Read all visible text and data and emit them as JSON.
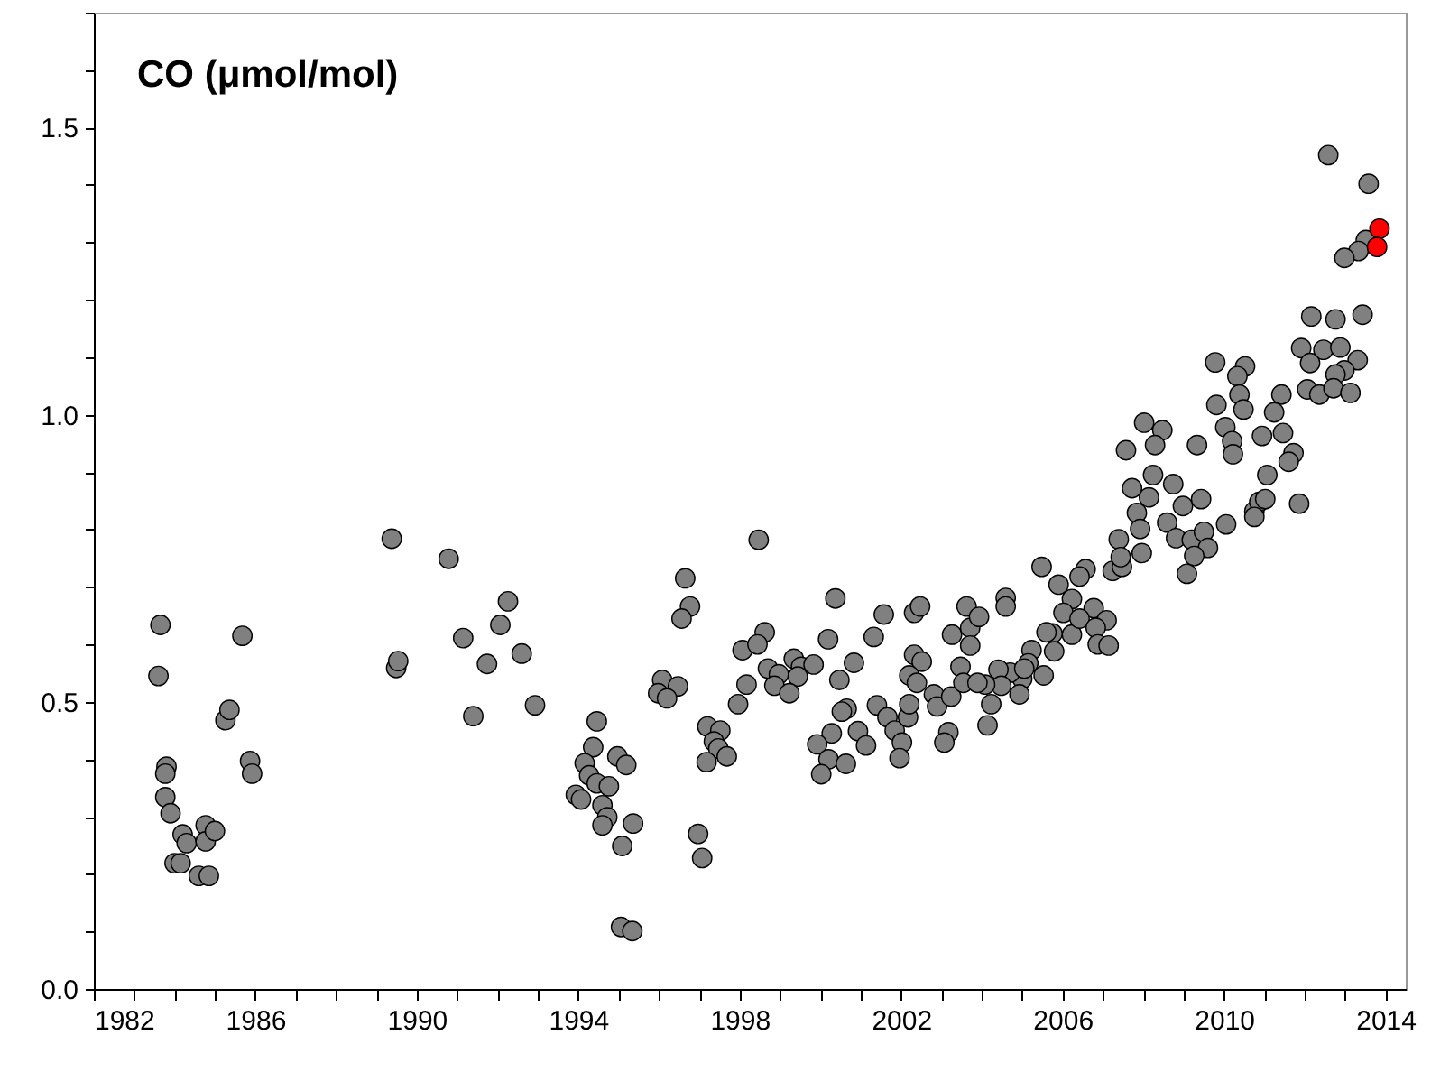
{
  "chart_data": {
    "type": "scatter",
    "title": "CO (μmol/mol)",
    "marker": "circle",
    "grid": false,
    "xlim": [
      1982,
      2014.5
    ],
    "ylim": [
      0,
      1.7
    ],
    "xticks": [
      1982,
      {
        "value": 1983,
        "label": null
      },
      {
        "value": 1984,
        "label": null
      },
      {
        "value": 1985,
        "label": null
      },
      1986,
      {
        "value": 1987,
        "label": null
      },
      {
        "value": 1988,
        "label": null
      },
      {
        "value": 1989,
        "label": null
      },
      1990,
      {
        "value": 1991,
        "label": null
      },
      {
        "value": 1992,
        "label": null
      },
      {
        "value": 1993,
        "label": null
      },
      1994,
      {
        "value": 1995,
        "label": null
      },
      {
        "value": 1996,
        "label": null
      },
      {
        "value": 1997,
        "label": null
      },
      1998,
      {
        "value": 1999,
        "label": null
      },
      {
        "value": 2000,
        "label": null
      },
      {
        "value": 2001,
        "label": null
      },
      2002,
      {
        "value": 2003,
        "label": null
      },
      {
        "value": 2004,
        "label": null
      },
      {
        "value": 2005,
        "label": null
      },
      2006,
      {
        "value": 2007,
        "label": null
      },
      {
        "value": 2008,
        "label": null
      },
      {
        "value": 2009,
        "label": null
      },
      2010,
      {
        "value": 2011,
        "label": null
      },
      {
        "value": 2012,
        "label": null
      },
      {
        "value": 2013,
        "label": null
      },
      2014
    ],
    "yticks": [
      {
        "value": 0,
        "label": "0.0"
      },
      {
        "value": 0.1,
        "label": null
      },
      {
        "value": 0.2,
        "label": null
      },
      {
        "value": 0.3,
        "label": null
      },
      {
        "value": 0.4,
        "label": null
      },
      0.5,
      {
        "value": 0.6,
        "label": null
      },
      {
        "value": 0.7,
        "label": null
      },
      {
        "value": 0.8,
        "label": null
      },
      {
        "value": 0.9,
        "label": null
      },
      {
        "value": 1,
        "label": "1.0"
      },
      {
        "value": 1.1,
        "label": null
      },
      {
        "value": 1.2,
        "label": null
      },
      {
        "value": 1.3,
        "label": null
      },
      {
        "value": 1.4,
        "label": null
      },
      1.5,
      {
        "value": 1.6,
        "label": null
      },
      {
        "value": 1.7,
        "label": null
      }
    ],
    "series": [
      {
        "color": "#808080",
        "x": [
          1983.65,
          1983.6,
          1983.8,
          1983.77,
          1983.77,
          1983.9,
          1984.2,
          1984.3,
          1984.0,
          1984.15,
          1984.6,
          1984.85,
          1984.77,
          1984.77,
          1985.0,
          1985.26,
          1985.36,
          1985.68,
          1985.87,
          1985.92,
          1989.38,
          1989.49,
          1989.54,
          1990.79,
          1991.15,
          1991.4,
          1991.74,
          1992.07,
          1992.26,
          1992.6,
          1992.93,
          1994.46,
          1994.37,
          1994.16,
          1994.27,
          1994.46,
          1994.76,
          1994.97,
          1995.19,
          1993.94,
          1994.07,
          1994.6,
          1994.72,
          1994.6,
          1995.36,
          1995.09,
          1995.06,
          1995.34,
          1996.65,
          1996.77,
          1996.56,
          1996.08,
          1996.47,
          1995.98,
          1996.2,
          1998.47,
          1998.62,
          1998.07,
          1998.44,
          1998.17,
          1997.96,
          1997.2,
          1997.52,
          1997.36,
          1997.47,
          1997.68,
          1997.18,
          1996.97,
          1997.07,
          1998.7,
          1998.97,
          1998.86,
          1999.34,
          1999.52,
          1999.83,
          1999.44,
          1999.23,
          2000.37,
          2000.19,
          2000.47,
          2000.83,
          2000.65,
          2000.53,
          2000.28,
          1999.92,
          2000.2,
          2000.63,
          2000.02,
          2000.93,
          2001.13,
          2001.4,
          2001.66,
          2001.32,
          2001.57,
          2001.84,
          2002.02,
          2001.96,
          2002.17,
          2002.2,
          2002.32,
          2002.47,
          2002.32,
          2002.51,
          2002.2,
          2002.39,
          2002.81,
          2002.89,
          2003.24,
          2003.26,
          2003.47,
          2003.54,
          2003.17,
          2003.07,
          2003.62,
          2003.71,
          2003.71,
          2005.48,
          2005.9,
          2006.57,
          2006.42,
          2007.24,
          2007.47,
          2007.96,
          2009.08,
          2004.59,
          2004.59,
          2003.93,
          2006.23,
          2006.02,
          2006.23,
          2006.77,
          2007.09,
          2006.42,
          2006.82,
          2006.87,
          2007.14,
          2005.75,
          2005.6,
          2005.79,
          2005.23,
          2005.15,
          2005.53,
          2005.0,
          2004.93,
          2004.7,
          2004.41,
          2004.48,
          2004.23,
          2004.14,
          2004.08,
          2003.89,
          2005.05,
          2012.58,
          2013.58,
          2013.51,
          2013.33,
          2012.98,
          2012.16,
          2012.76,
          2013.43,
          2011.91,
          2012.46,
          2012.88,
          2013.31,
          2012.13,
          2012.98,
          2012.76,
          2012.06,
          2012.36,
          2012.71,
          2013.13,
          2009.78,
          2010.52,
          2010.33,
          2011.42,
          2009.81,
          2010.38,
          2010.48,
          2011.24,
          2008.02,
          2008.47,
          2008.29,
          2007.57,
          2009.33,
          2010.03,
          2010.2,
          2010.22,
          2010.94,
          2011.46,
          2011.72,
          2011.6,
          2011.07,
          2011.86,
          2007.72,
          2008.24,
          2008.74,
          2008.14,
          2007.84,
          2008.98,
          2009.43,
          2008.59,
          2007.92,
          2007.39,
          2007.44,
          2008.81,
          2009.2,
          2009.5,
          2009.6,
          2010.05,
          2009.26,
          2010.75,
          2010.87,
          2011.02,
          2010.75
        ],
        "values": [
          0.634,
          0.545,
          0.387,
          0.375,
          0.334,
          0.306,
          0.269,
          0.254,
          0.219,
          0.219,
          0.197,
          0.197,
          0.285,
          0.257,
          0.275,
          0.468,
          0.486,
          0.615,
          0.397,
          0.375,
          0.784,
          0.559,
          0.571,
          0.749,
          0.611,
          0.475,
          0.566,
          0.634,
          0.675,
          0.584,
          0.494,
          0.466,
          0.421,
          0.393,
          0.372,
          0.358,
          0.353,
          0.405,
          0.39,
          0.338,
          0.33,
          0.32,
          0.299,
          0.285,
          0.288,
          0.249,
          0.108,
          0.101,
          0.715,
          0.666,
          0.645,
          0.538,
          0.527,
          0.515,
          0.506,
          0.782,
          0.621,
          0.59,
          0.6,
          0.53,
          0.496,
          0.457,
          0.45,
          0.431,
          0.419,
          0.405,
          0.395,
          0.27,
          0.228,
          0.558,
          0.548,
          0.528,
          0.575,
          0.561,
          0.565,
          0.544,
          0.515,
          0.68,
          0.609,
          0.538,
          0.568,
          0.488,
          0.483,
          0.445,
          0.426,
          0.4,
          0.392,
          0.374,
          0.449,
          0.424,
          0.494,
          0.473,
          0.613,
          0.652,
          0.45,
          0.429,
          0.402,
          0.473,
          0.496,
          0.655,
          0.666,
          0.582,
          0.57,
          0.546,
          0.533,
          0.513,
          0.492,
          0.509,
          0.617,
          0.561,
          0.533,
          0.447,
          0.429,
          0.666,
          0.629,
          0.598,
          0.735,
          0.704,
          0.731,
          0.718,
          0.728,
          0.735,
          0.759,
          0.723,
          0.681,
          0.666,
          0.648,
          0.679,
          0.655,
          0.617,
          0.663,
          0.642,
          0.645,
          0.629,
          0.6,
          0.598,
          0.619,
          0.621,
          0.588,
          0.59,
          0.567,
          0.546,
          0.54,
          0.513,
          0.551,
          0.556,
          0.528,
          0.496,
          0.459,
          0.53,
          0.533,
          0.558,
          1.452,
          1.402,
          1.304,
          1.285,
          1.273,
          1.171,
          1.166,
          1.174,
          1.116,
          1.113,
          1.117,
          1.095,
          1.09,
          1.077,
          1.07,
          1.044,
          1.035,
          1.046,
          1.038,
          1.091,
          1.084,
          1.067,
          1.035,
          1.017,
          1.035,
          1.009,
          1.004,
          0.986,
          0.973,
          0.947,
          0.938,
          0.947,
          0.978,
          0.954,
          0.931,
          0.963,
          0.968,
          0.933,
          0.918,
          0.895,
          0.845,
          0.872,
          0.895,
          0.879,
          0.856,
          0.829,
          0.841,
          0.853,
          0.812,
          0.801,
          0.783,
          0.752,
          0.785,
          0.782,
          0.796,
          0.768,
          0.809,
          0.754,
          0.832,
          0.848,
          0.853,
          0.822
        ]
      },
      {
        "color": "#ff0000",
        "x": [
          2013.85,
          2013.79
        ],
        "values": [
          1.324,
          1.292
        ]
      }
    ]
  }
}
